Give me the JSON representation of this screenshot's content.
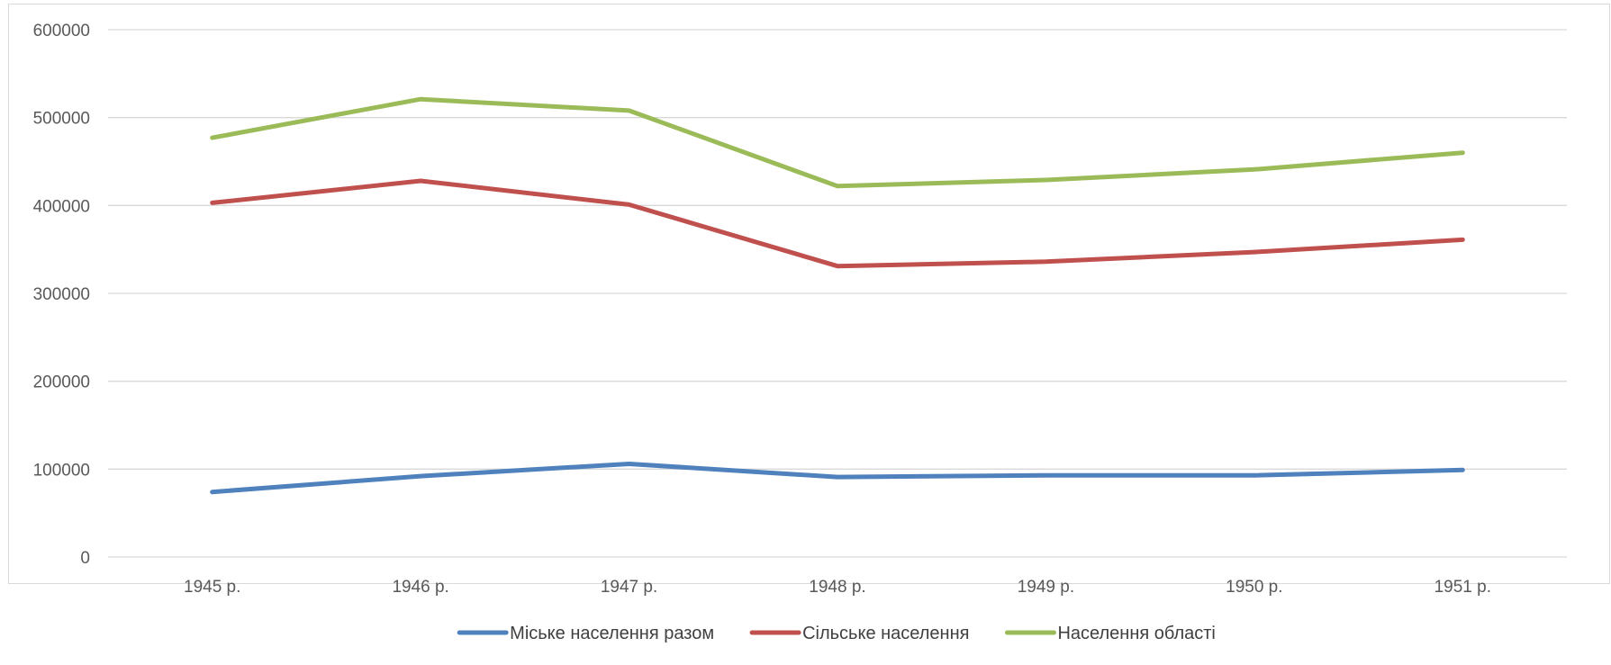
{
  "chart_data": {
    "type": "line",
    "categories": [
      "1945 р.",
      "1946 р.",
      "1947 р.",
      "1948 р.",
      "1949 р.",
      "1950 р.",
      "1951 р."
    ],
    "series": [
      {
        "name": "Міське населення разом",
        "color": "#4F81BD",
        "values": [
          74000,
          92000,
          106000,
          91000,
          93000,
          93000,
          99000
        ]
      },
      {
        "name": "Сільське населення",
        "color": "#C0504D",
        "values": [
          403000,
          428000,
          401000,
          331000,
          336000,
          347000,
          361000
        ]
      },
      {
        "name": "Населення області",
        "color": "#9BBB59",
        "values": [
          477000,
          521000,
          508000,
          422000,
          429000,
          441000,
          460000
        ]
      }
    ],
    "y_ticks": [
      "0",
      "100000",
      "200000",
      "300000",
      "400000",
      "500000",
      "600000"
    ],
    "ylim": [
      0,
      600000
    ],
    "grid": true,
    "legend_position": "bottom"
  }
}
